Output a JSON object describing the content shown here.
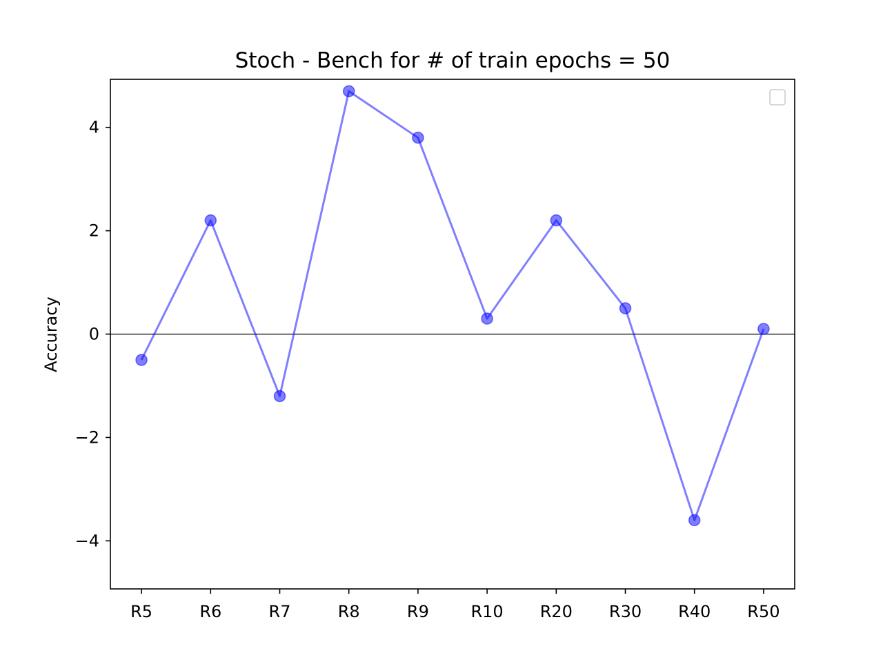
{
  "chart_data": {
    "type": "line",
    "title": "Stoch - Bench for # of train epochs = 50",
    "xlabel": "",
    "ylabel": "Accuracy",
    "categories": [
      "R5",
      "R6",
      "R7",
      "R8",
      "R9",
      "R10",
      "R20",
      "R30",
      "R40",
      "R50"
    ],
    "series": [
      {
        "values": [
          -0.5,
          2.2,
          -1.2,
          4.7,
          3.8,
          0.3,
          2.2,
          0.5,
          -3.6,
          0.1
        ],
        "color": "#0000ff",
        "marker": "circle",
        "opacity": 0.5
      }
    ],
    "ylim": [
      -4.93,
      4.93
    ],
    "yticks": [
      -4,
      -2,
      0,
      2,
      4
    ],
    "ytick_labels": [
      "−4",
      "−2",
      "0",
      "2",
      "4"
    ],
    "reference_line": {
      "y": 0,
      "color": "#000000"
    },
    "grid": false,
    "legend": {
      "placement": "upper right",
      "entries": []
    }
  }
}
